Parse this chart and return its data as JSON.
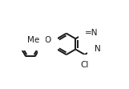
{
  "bg_color": "#ffffff",
  "line_color": "#1a1a1a",
  "line_width": 1.4,
  "font_size": 7.5,
  "figsize": [
    1.61,
    1.11
  ],
  "dpi": 100,
  "xlim": [
    0.0,
    1.05
  ],
  "ylim": [
    0.08,
    0.96
  ]
}
